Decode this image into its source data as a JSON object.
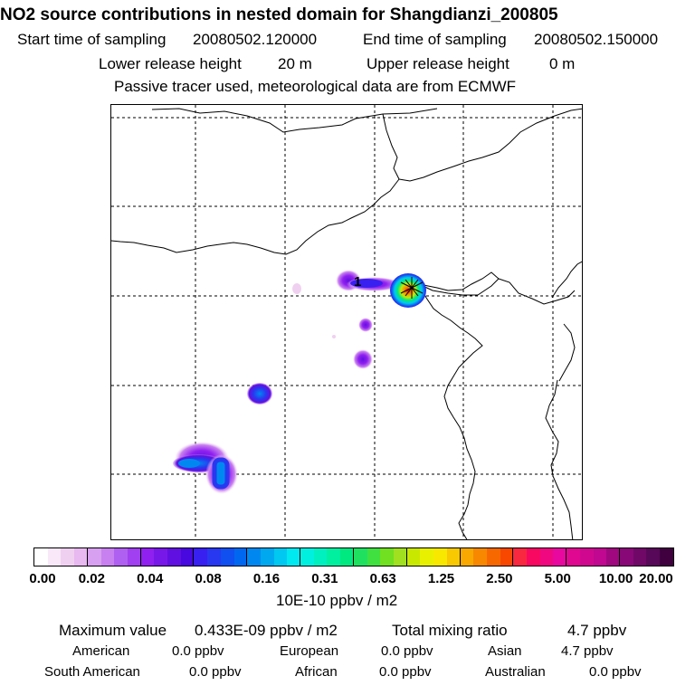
{
  "header": {
    "title": "NO2 source contributions in nested domain for Shangdianzi_200805",
    "start_label": "Start time of sampling",
    "start_value": "20080502.120000",
    "end_label": "End time of sampling",
    "end_value": "20080502.150000",
    "lower_label": "Lower release height",
    "lower_value": "20 m",
    "upper_label": "Upper release height",
    "upper_value": "0 m",
    "note": "Passive tracer used, meteorological data are from ECMWF"
  },
  "map": {
    "release_label": "1",
    "site_marker": "star-marker-icon"
  },
  "colorbar": {
    "tick_labels": [
      "0.00",
      "0.02",
      "0.04",
      "0.08",
      "0.16",
      "0.31",
      "0.63",
      "1.25",
      "2.50",
      "5.00",
      "10.00",
      "20.00"
    ],
    "unit": "10E-10 ppbv / m2",
    "colors": [
      "#ffffff",
      "#f8e8f8",
      "#f0d0f0",
      "#e8b8f0",
      "#d8a0f0",
      "#c880f0",
      "#b060f0",
      "#a040f0",
      "#9020f0",
      "#7818e8",
      "#6010e0",
      "#4808e0",
      "#3820f0",
      "#2838f0",
      "#1050f0",
      "#0068f0",
      "#0088f0",
      "#00a8f0",
      "#00c8f0",
      "#00e8f0",
      "#00f0e0",
      "#00f0c0",
      "#00f0a0",
      "#00e880",
      "#20e060",
      "#40e040",
      "#70e020",
      "#a0e020",
      "#c8e800",
      "#e8f000",
      "#f8e800",
      "#f8c800",
      "#f8a800",
      "#f88800",
      "#f86800",
      "#f84800",
      "#f82840",
      "#f80860",
      "#f00880",
      "#e808a0",
      "#e00890",
      "#d00890",
      "#c00890",
      "#a00880",
      "#880878",
      "#700868",
      "#580858",
      "#400040"
    ]
  },
  "footer": {
    "max_label": "Maximum value",
    "max_value": "0.433E-09 ppbv / m2",
    "total_label": "Total mixing ratio",
    "total_value": "4.7 ppbv",
    "regions": [
      {
        "name": "American",
        "value": "0.0 ppbv"
      },
      {
        "name": "European",
        "value": "0.0 ppbv"
      },
      {
        "name": "Asian",
        "value": "4.7 ppbv"
      },
      {
        "name": "South American",
        "value": "0.0 ppbv"
      },
      {
        "name": "African",
        "value": "0.0 ppbv"
      },
      {
        "name": "Australian",
        "value": "0.0 ppbv"
      }
    ]
  }
}
